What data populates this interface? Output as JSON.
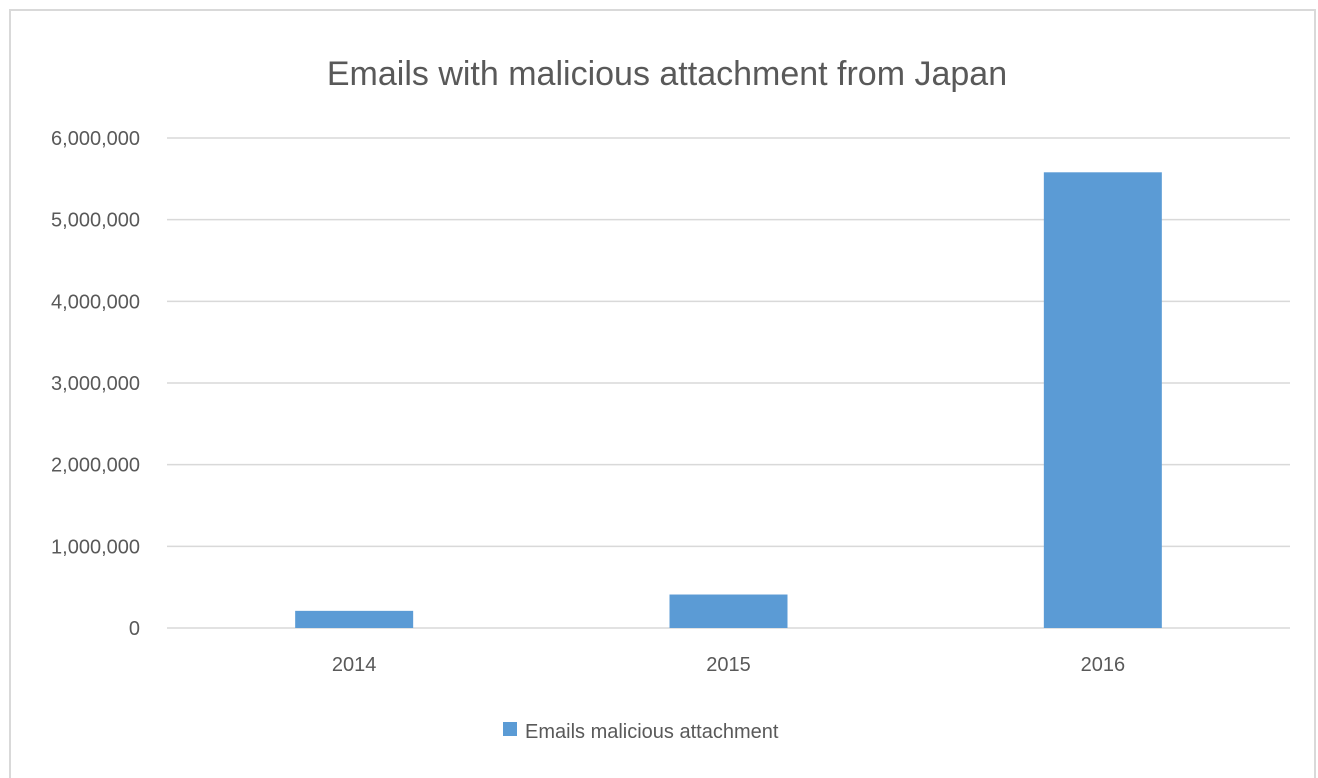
{
  "chart_data": {
    "type": "bar",
    "title": "Emails with malicious attachment from Japan",
    "categories": [
      "2014",
      "2015",
      "2016"
    ],
    "series": [
      {
        "name": "Emails malicious attachment",
        "values": [
          210000,
          410000,
          5580000
        ],
        "color": "#5b9bd5"
      }
    ],
    "ylim": [
      0,
      6000000
    ],
    "yticks": [
      0,
      1000000,
      2000000,
      3000000,
      4000000,
      5000000,
      6000000
    ],
    "ytick_labels": [
      "0",
      "1,000,000",
      "2,000,000",
      "3,000,000",
      "4,000,000",
      "5,000,000",
      "6,000,000"
    ],
    "grid": true,
    "legend_position": "bottom",
    "colors": {
      "gridline": "#d9d9d9",
      "text": "#595959"
    }
  }
}
